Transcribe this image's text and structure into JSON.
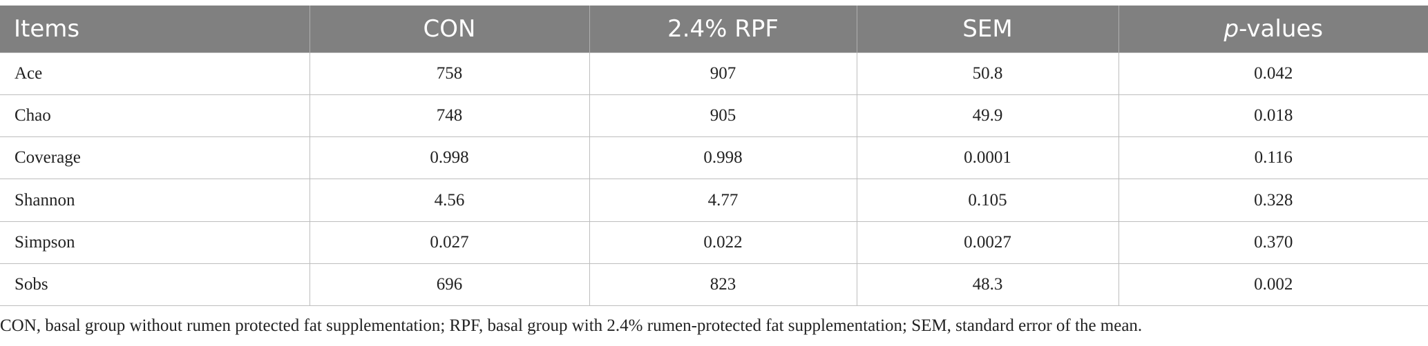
{
  "table": {
    "headers": {
      "items": "Items",
      "con": "CON",
      "rpf": "2.4% RPF",
      "sem": "SEM",
      "p_prefix": "p",
      "p_suffix": "-values"
    },
    "rows": [
      [
        "Ace",
        "758",
        "907",
        "50.8",
        "0.042"
      ],
      [
        "Chao",
        "748",
        "905",
        "49.9",
        "0.018"
      ],
      [
        "Coverage",
        "0.998",
        "0.998",
        "0.0001",
        "0.116"
      ],
      [
        "Shannon",
        "4.56",
        "4.77",
        "0.105",
        "0.328"
      ],
      [
        "Simpson",
        "0.027",
        "0.022",
        "0.0027",
        "0.370"
      ],
      [
        "Sobs",
        "696",
        "823",
        "48.3",
        "0.002"
      ]
    ]
  },
  "footnote": "CON, basal group without rumen protected fat supplementation; RPF, basal group with 2.4% rumen-protected fat supplementation; SEM, standard error of the mean.",
  "colors": {
    "header_bg": "#808080",
    "header_text": "#ffffff",
    "grid": "#bdbdbd"
  }
}
